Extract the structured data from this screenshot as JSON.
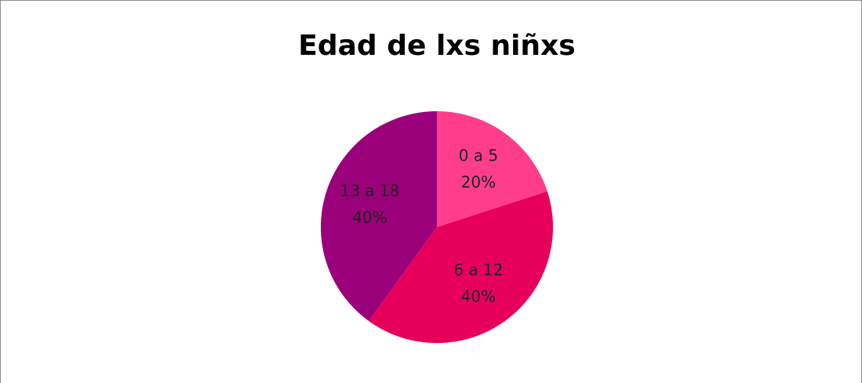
{
  "chart_data": {
    "type": "pie",
    "title": "Edad de lxs niñxs",
    "categories": [
      "0 a 5",
      "6 a 12",
      "13 a 18"
    ],
    "values": [
      20,
      40,
      40
    ],
    "value_labels": [
      "20%",
      "40%",
      "40%"
    ],
    "colors": [
      "#ff3d8b",
      "#e6005c",
      "#9a007a"
    ]
  }
}
